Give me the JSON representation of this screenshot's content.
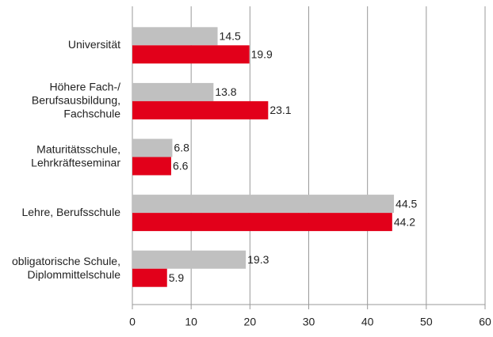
{
  "chart_data": {
    "type": "hbar",
    "categories": [
      [
        "Universität"
      ],
      [
        "Höhere Fach-/",
        "Berufsausbildung,",
        "Fachschule"
      ],
      [
        "Maturitätsschule,",
        "Lehrkräfteseminar"
      ],
      [
        "Lehre, Berufsschule"
      ],
      [
        "obligatorische Schule,",
        "Diplommittelschule"
      ]
    ],
    "series": [
      {
        "color": "#c0c0c0",
        "values": [
          14.5,
          13.8,
          6.8,
          44.5,
          19.3
        ]
      },
      {
        "color": "#e2001a",
        "values": [
          19.9,
          23.1,
          6.6,
          44.2,
          5.9
        ]
      }
    ],
    "xlim": [
      0,
      60
    ],
    "xticks": [
      0,
      10,
      20,
      30,
      40,
      50,
      60
    ],
    "grid": true
  }
}
